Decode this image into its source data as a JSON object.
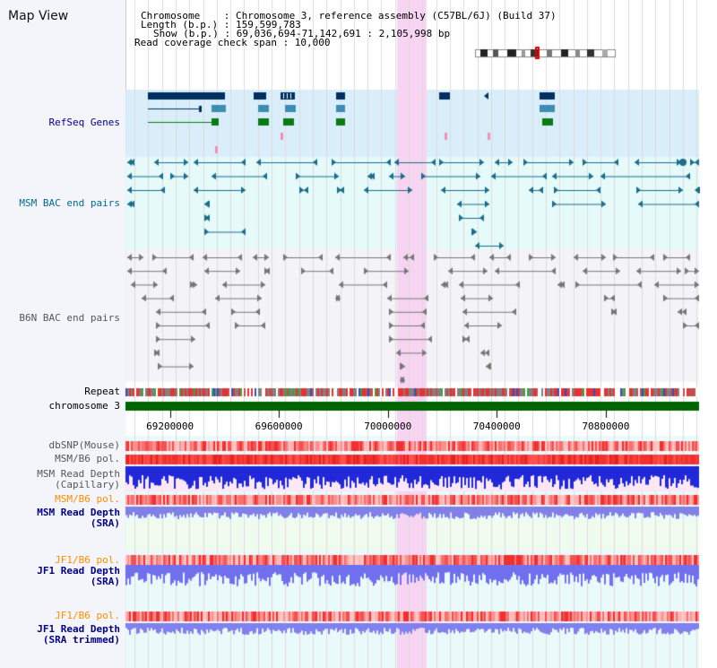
{
  "title": "Map View",
  "info": {
    "chromosome": "Chromosome    : Chromosome 3, reference assembly (C57BL/6J) (Build 37)",
    "length": "Length (b.p.) : 159,599,783",
    "show": "Show (b.p.) : 69,036,694-71,142,691 : 2,105,998 bp",
    "coverage": "Read coverage check span : 10,000"
  },
  "tracks": {
    "refseq": "RefSeq Genes",
    "msm_bac": "MSM BAC end pairs",
    "b6n_bac": "B6N BAC end pairs",
    "repeat": "Repeat",
    "chromosome": "chromosome 3",
    "dbsnp": "dbSNP(Mouse)",
    "msm_b6_pol_1": "MSM/B6 pol.",
    "msm_depth_cap_1": "MSM Read Depth",
    "msm_depth_cap_2": "(Capillary)",
    "msm_b6_pol_2": "MSM/B6 pol.",
    "msm_depth_sra_1": "MSM Read Depth",
    "msm_depth_sra_2": "(SRA)",
    "jf1_pol_1": "JF1/B6 pol.",
    "jf1_depth_1": "JF1 Read Depth",
    "jf1_depth_2": "(SRA)",
    "jf1_pol_2": "JF1/B6 pol.",
    "jf1_trim_1": "JF1 Read Depth",
    "jf1_trim_2": "(SRA trimmed)"
  },
  "axis": {
    "ticks": [
      {
        "value": 69200000,
        "label": "69200000"
      },
      {
        "value": 69600000,
        "label": "69600000"
      },
      {
        "value": 70000000,
        "label": "70000000"
      },
      {
        "value": 70400000,
        "label": "70400000"
      },
      {
        "value": 70800000,
        "label": "70800000"
      }
    ],
    "start": 69036694,
    "end": 71142691
  },
  "colors": {
    "refseq_bg": "#d9eefa",
    "msm_bg": "#e6fafa",
    "b6n_bg": "#f4f4f8",
    "highlight": "#f7d4f2",
    "chromosome_bar": "#006400",
    "refseq_navy": "#00305f",
    "refseq_blue": "#3c8cb4",
    "refseq_green": "#0a7a14",
    "msm_line": "#1b6e8a",
    "b6n_line": "#777777"
  }
}
